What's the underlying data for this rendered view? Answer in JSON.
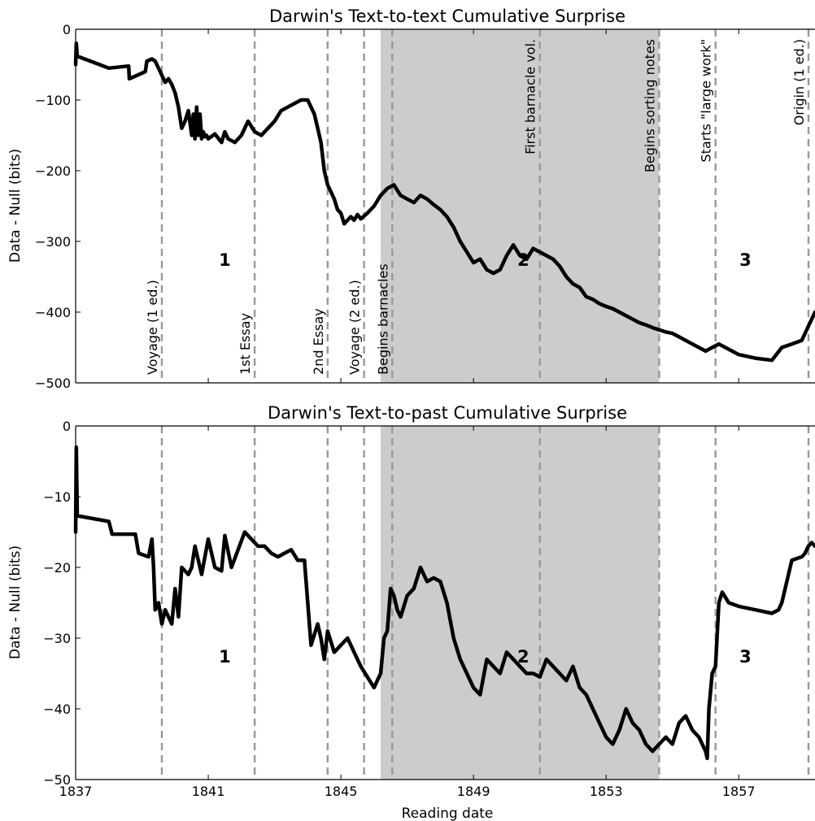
{
  "chart_data": [
    {
      "type": "line",
      "title": "Darwin's Text-to-text Cumulative Surprise",
      "ylabel": "Data - Null (bits)",
      "xlabel": "",
      "xlim": [
        1837,
        1859.3
      ],
      "ylim": [
        -500,
        0
      ],
      "yticks": [
        0,
        -100,
        -200,
        -300,
        -400,
        -500
      ],
      "ytick_labels": [
        "0",
        "−100",
        "−200",
        "−300",
        "−400",
        "−500"
      ],
      "xticks": [
        1837,
        1841,
        1845,
        1849,
        1853,
        1857
      ],
      "grid": false,
      "shaded_region": [
        1846.2,
        1854.6
      ],
      "period_labels": [
        {
          "x": 1841.5,
          "y": -325,
          "text": "1"
        },
        {
          "x": 1850.5,
          "y": -325,
          "text": "2"
        },
        {
          "x": 1857.2,
          "y": -325,
          "text": "3"
        }
      ],
      "events": [
        {
          "x": 1839.6,
          "label": "Voyage (1 ed.)",
          "label_pos": "bottom"
        },
        {
          "x": 1842.4,
          "label": "1st Essay",
          "label_pos": "bottom"
        },
        {
          "x": 1844.6,
          "label": "2nd Essay",
          "label_pos": "bottom"
        },
        {
          "x": 1845.7,
          "label": "Voyage (2 ed.)",
          "label_pos": "bottom"
        },
        {
          "x": 1846.55,
          "label": "Begins barnacles",
          "label_pos": "bottom"
        },
        {
          "x": 1851.0,
          "label": "First barnacle vol.",
          "label_pos": "top"
        },
        {
          "x": 1854.6,
          "label": "Begins sorting notes",
          "label_pos": "top"
        },
        {
          "x": 1856.3,
          "label": "Starts \"large work\"",
          "label_pos": "top"
        },
        {
          "x": 1859.9,
          "label": "Origin (1 ed.)",
          "label_pos": "top"
        }
      ],
      "series": [
        {
          "x": [
            1837.0,
            1837.02,
            1837.05,
            1838.0,
            1838.6,
            1838.62,
            1839.1,
            1839.15,
            1839.3,
            1839.4,
            1839.55,
            1839.7,
            1839.8,
            1839.9,
            1840.0,
            1840.1,
            1840.2,
            1840.3,
            1840.4,
            1840.5,
            1840.55,
            1840.6,
            1840.65,
            1840.7,
            1840.75,
            1840.8,
            1840.85,
            1840.9,
            1840.95,
            1841.0,
            1841.2,
            1841.4,
            1841.5,
            1841.6,
            1841.8,
            1842.0,
            1842.2,
            1842.4,
            1842.6,
            1842.8,
            1843.0,
            1843.2,
            1843.4,
            1843.6,
            1843.8,
            1844.0,
            1844.1,
            1844.2,
            1844.3,
            1844.4,
            1844.5,
            1844.6,
            1844.7,
            1844.8,
            1844.9,
            1845.0,
            1845.1,
            1845.2,
            1845.3,
            1845.4,
            1845.5,
            1845.6,
            1845.8,
            1846.0,
            1846.2,
            1846.4,
            1846.6,
            1846.8,
            1847.0,
            1847.2,
            1847.4,
            1847.6,
            1847.8,
            1848.0,
            1848.2,
            1848.4,
            1848.6,
            1848.8,
            1849.0,
            1849.2,
            1849.4,
            1849.6,
            1849.8,
            1850.0,
            1850.2,
            1850.4,
            1850.6,
            1850.8,
            1851.0,
            1851.2,
            1851.4,
            1851.6,
            1851.8,
            1852.0,
            1852.2,
            1852.4,
            1852.6,
            1852.8,
            1853.0,
            1853.2,
            1853.4,
            1853.6,
            1853.8,
            1854.0,
            1854.2,
            1854.4,
            1854.6,
            1854.8,
            1855.0,
            1855.2,
            1855.4,
            1855.6,
            1855.8,
            1856.0,
            1856.2,
            1856.4,
            1856.6,
            1856.8,
            1857.0,
            1857.5,
            1858.0,
            1858.3,
            1858.6,
            1858.9,
            1859.0,
            1859.1,
            1859.2,
            1859.3
          ],
          "y": [
            -50,
            -20,
            -38,
            -55,
            -52,
            -70,
            -60,
            -45,
            -42,
            -45,
            -60,
            -75,
            -70,
            -78,
            -90,
            -110,
            -140,
            -130,
            -115,
            -150,
            -120,
            -155,
            -110,
            -150,
            -120,
            -155,
            -145,
            -152,
            -150,
            -155,
            -148,
            -160,
            -145,
            -155,
            -160,
            -150,
            -130,
            -145,
            -150,
            -140,
            -130,
            -115,
            -110,
            -105,
            -100,
            -100,
            -110,
            -120,
            -140,
            -160,
            -200,
            -220,
            -230,
            -240,
            -255,
            -260,
            -275,
            -270,
            -265,
            -270,
            -262,
            -268,
            -260,
            -250,
            -235,
            -225,
            -220,
            -235,
            -240,
            -245,
            -235,
            -240,
            -248,
            -255,
            -265,
            -280,
            -300,
            -315,
            -330,
            -325,
            -340,
            -345,
            -340,
            -320,
            -305,
            -320,
            -325,
            -310,
            -315,
            -320,
            -325,
            -335,
            -350,
            -360,
            -365,
            -378,
            -382,
            -388,
            -392,
            -395,
            -400,
            -405,
            -410,
            -415,
            -418,
            -422,
            -425,
            -428,
            -430,
            -435,
            -440,
            -445,
            -450,
            -455,
            -450,
            -445,
            -450,
            -455,
            -460,
            -465,
            -468,
            -450,
            -445,
            -440,
            -430,
            -420,
            -410,
            -400
          ]
        }
      ]
    },
    {
      "type": "line",
      "title": "Darwin's Text-to-past Cumulative Surprise",
      "ylabel": "Data - Null (bits)",
      "xlabel": "Reading date",
      "xlim": [
        1837,
        1859.3
      ],
      "ylim": [
        -50,
        0
      ],
      "yticks": [
        0,
        -10,
        -20,
        -30,
        -40,
        -50
      ],
      "ytick_labels": [
        "0",
        "−10",
        "−20",
        "−30",
        "−40",
        "−50"
      ],
      "xticks": [
        1837,
        1841,
        1845,
        1849,
        1853,
        1857
      ],
      "xtick_labels": [
        "1837",
        "1841",
        "1845",
        "1849",
        "1853",
        "1857"
      ],
      "grid": false,
      "shaded_region": [
        1846.2,
        1854.6
      ],
      "period_labels": [
        {
          "x": 1841.5,
          "y": -32.5,
          "text": "1"
        },
        {
          "x": 1850.5,
          "y": -32.5,
          "text": "2"
        },
        {
          "x": 1857.2,
          "y": -32.5,
          "text": "3"
        }
      ],
      "events": [
        {
          "x": 1839.6
        },
        {
          "x": 1842.4
        },
        {
          "x": 1844.6
        },
        {
          "x": 1845.7
        },
        {
          "x": 1846.55
        },
        {
          "x": 1851.0
        },
        {
          "x": 1854.6
        },
        {
          "x": 1856.3
        },
        {
          "x": 1859.9
        }
      ],
      "series": [
        {
          "x": [
            1837.0,
            1837.02,
            1837.05,
            1838.0,
            1838.1,
            1838.8,
            1838.9,
            1839.2,
            1839.3,
            1839.35,
            1839.4,
            1839.5,
            1839.6,
            1839.7,
            1839.8,
            1839.9,
            1840.0,
            1840.1,
            1840.2,
            1840.3,
            1840.4,
            1840.5,
            1840.6,
            1840.8,
            1841.0,
            1841.2,
            1841.4,
            1841.5,
            1841.7,
            1841.9,
            1842.1,
            1842.3,
            1842.5,
            1842.7,
            1842.9,
            1843.1,
            1843.3,
            1843.5,
            1843.7,
            1843.9,
            1844.1,
            1844.3,
            1844.4,
            1844.5,
            1844.6,
            1844.8,
            1845.0,
            1845.2,
            1845.4,
            1845.6,
            1845.8,
            1846.0,
            1846.1,
            1846.2,
            1846.3,
            1846.4,
            1846.5,
            1846.6,
            1846.7,
            1846.8,
            1847.0,
            1847.2,
            1847.4,
            1847.6,
            1847.8,
            1848.0,
            1848.2,
            1848.4,
            1848.6,
            1848.8,
            1849.0,
            1849.2,
            1849.4,
            1849.6,
            1849.8,
            1850.0,
            1850.2,
            1850.4,
            1850.6,
            1850.8,
            1851.0,
            1851.2,
            1851.4,
            1851.6,
            1851.8,
            1852.0,
            1852.2,
            1852.4,
            1852.6,
            1852.8,
            1853.0,
            1853.2,
            1853.4,
            1853.6,
            1853.8,
            1854.0,
            1854.2,
            1854.4,
            1854.6,
            1854.8,
            1855.0,
            1855.2,
            1855.4,
            1855.6,
            1855.8,
            1856.0,
            1856.05,
            1856.1,
            1856.2,
            1856.3,
            1856.4,
            1856.5,
            1856.7,
            1857.0,
            1857.5,
            1858.0,
            1858.2,
            1858.3,
            1858.6,
            1858.9,
            1859.0,
            1859.1,
            1859.2,
            1859.3
          ],
          "y": [
            -15,
            -3,
            -12.7,
            -13.5,
            -15.3,
            -15.3,
            -18,
            -18.5,
            -16,
            -20,
            -26,
            -25,
            -28,
            -26,
            -27,
            -28,
            -23,
            -27,
            -20,
            -20.5,
            -21,
            -20,
            -17,
            -21,
            -16,
            -20,
            -20.5,
            -15.5,
            -20,
            -17.5,
            -15,
            -16,
            -17,
            -17,
            -18,
            -18.5,
            -18,
            -17.5,
            -19,
            -19,
            -31,
            -28,
            -30,
            -33,
            -29,
            -32,
            -31,
            -30,
            -32,
            -34,
            -35.5,
            -37,
            -36,
            -35,
            -30,
            -29,
            -23,
            -24,
            -26,
            -27,
            -24,
            -23,
            -20,
            -22,
            -21.5,
            -22,
            -25,
            -30,
            -33,
            -35,
            -37,
            -38,
            -33,
            -34,
            -35,
            -32,
            -33,
            -34,
            -35,
            -35,
            -35.5,
            -33,
            -34,
            -35,
            -36,
            -34,
            -37,
            -38,
            -40,
            -42,
            -44,
            -45,
            -43,
            -40,
            -42,
            -43,
            -45,
            -46,
            -45,
            -44,
            -45,
            -42,
            -41,
            -43,
            -44,
            -46,
            -47,
            -40,
            -35,
            -34,
            -25,
            -23.5,
            -25,
            -25.5,
            -26,
            -26.5,
            -26,
            -25,
            -19,
            -18.5,
            -18,
            -17,
            -16.5,
            -17
          ]
        }
      ]
    }
  ]
}
